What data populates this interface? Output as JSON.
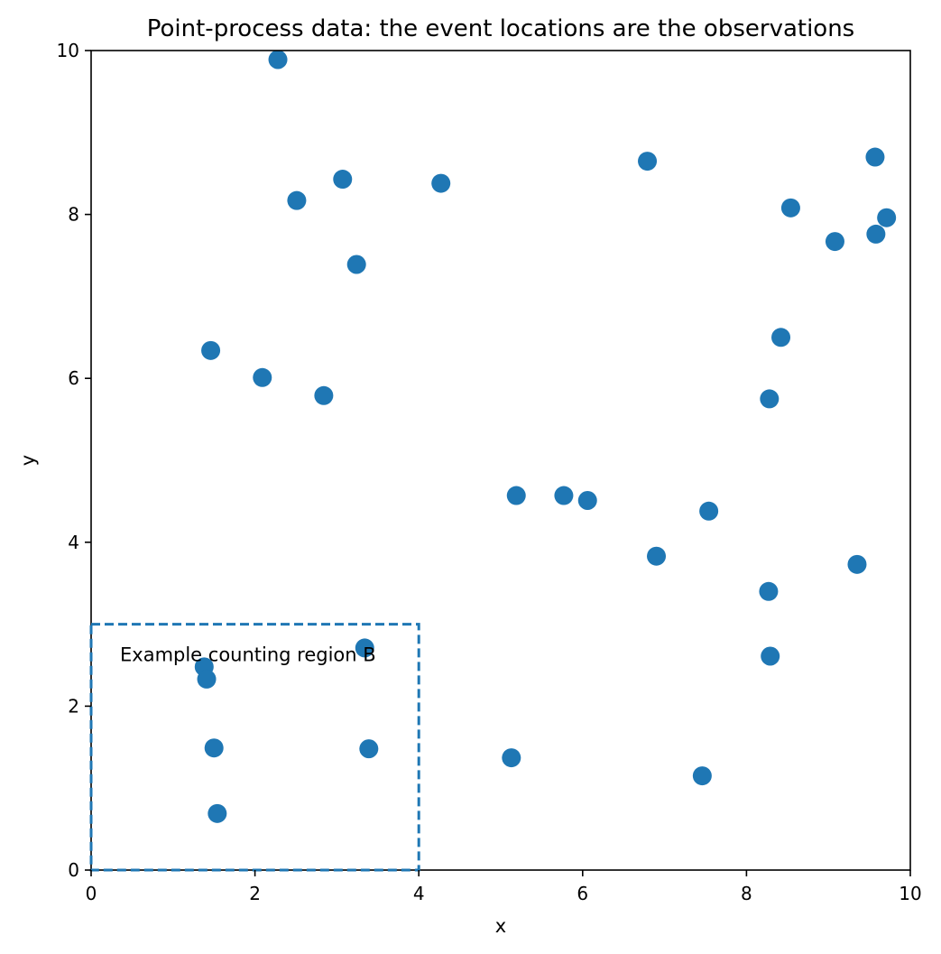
{
  "chart_data": {
    "type": "scatter",
    "title": "Point-process data: the event locations are the observations",
    "xlabel": "x",
    "ylabel": "y",
    "xlim": [
      0,
      10
    ],
    "ylim": [
      0,
      10
    ],
    "xticks": [
      0,
      2,
      4,
      6,
      8,
      10
    ],
    "yticks": [
      0,
      2,
      4,
      6,
      8,
      10
    ],
    "grid": false,
    "series": [
      {
        "color": "#1f77b4",
        "points": [
          {
            "x": 2.28,
            "y": 9.89
          },
          {
            "x": 9.57,
            "y": 8.7
          },
          {
            "x": 6.79,
            "y": 8.65
          },
          {
            "x": 3.07,
            "y": 8.43
          },
          {
            "x": 4.27,
            "y": 8.38
          },
          {
            "x": 2.51,
            "y": 8.17
          },
          {
            "x": 8.54,
            "y": 8.08
          },
          {
            "x": 9.71,
            "y": 7.96
          },
          {
            "x": 9.58,
            "y": 7.76
          },
          {
            "x": 9.08,
            "y": 7.67
          },
          {
            "x": 3.24,
            "y": 7.39
          },
          {
            "x": 8.42,
            "y": 6.5
          },
          {
            "x": 1.46,
            "y": 6.34
          },
          {
            "x": 2.09,
            "y": 6.01
          },
          {
            "x": 2.84,
            "y": 5.79
          },
          {
            "x": 8.28,
            "y": 5.75
          },
          {
            "x": 5.19,
            "y": 4.57
          },
          {
            "x": 5.77,
            "y": 4.57
          },
          {
            "x": 6.06,
            "y": 4.51
          },
          {
            "x": 7.54,
            "y": 4.38
          },
          {
            "x": 6.9,
            "y": 3.83
          },
          {
            "x": 9.35,
            "y": 3.73
          },
          {
            "x": 8.27,
            "y": 3.4
          },
          {
            "x": 3.34,
            "y": 2.71
          },
          {
            "x": 8.29,
            "y": 2.61
          },
          {
            "x": 1.38,
            "y": 2.48
          },
          {
            "x": 1.41,
            "y": 2.33
          },
          {
            "x": 1.5,
            "y": 1.49
          },
          {
            "x": 3.39,
            "y": 1.48
          },
          {
            "x": 5.13,
            "y": 1.37
          },
          {
            "x": 7.46,
            "y": 1.15
          },
          {
            "x": 1.54,
            "y": 0.69
          }
        ]
      }
    ],
    "region": {
      "x": [
        0,
        4
      ],
      "y": [
        0,
        3
      ],
      "color": "#1f77b4",
      "linestyle": "dashed",
      "label": "Example counting region B"
    }
  }
}
